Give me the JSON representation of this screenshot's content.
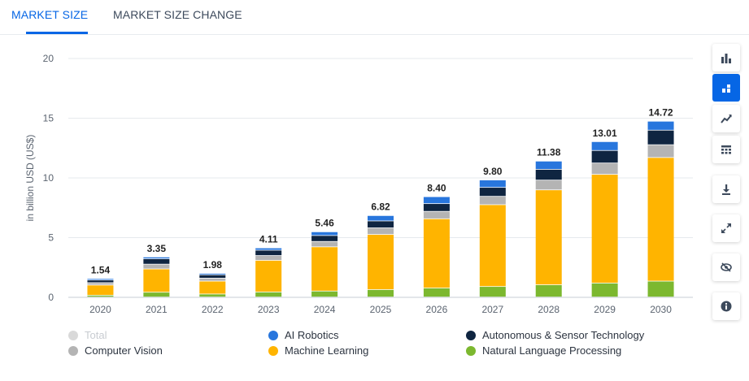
{
  "tabs": [
    {
      "label": "MARKET SIZE",
      "active": true
    },
    {
      "label": "MARKET SIZE CHANGE",
      "active": false
    }
  ],
  "chart_data": {
    "type": "stacked-bar",
    "ylabel": "in billion USD (US$)",
    "ylim": [
      0,
      20
    ],
    "yticks": [
      0,
      5,
      10,
      15,
      20
    ],
    "grid": true,
    "legend_position": "bottom",
    "categories": [
      "2020",
      "2021",
      "2022",
      "2023",
      "2024",
      "2025",
      "2026",
      "2027",
      "2028",
      "2029",
      "2030"
    ],
    "totals": [
      "1.54",
      "3.35",
      "1.98",
      "4.11",
      "5.46",
      "6.82",
      "8.40",
      "9.80",
      "11.38",
      "13.01",
      "14.72"
    ],
    "series": [
      {
        "name": "Natural Language Processing",
        "color": "#7cb82f",
        "values": [
          0.15,
          0.4,
          0.25,
          0.42,
          0.5,
          0.62,
          0.75,
          0.88,
          1.02,
          1.17,
          1.33
        ]
      },
      {
        "name": "Machine Learning",
        "color": "#ffb400",
        "values": [
          0.85,
          1.95,
          1.08,
          2.65,
          3.7,
          4.62,
          5.8,
          6.85,
          7.95,
          9.1,
          10.35
        ]
      },
      {
        "name": "Computer Vision",
        "color": "#b4b4b4",
        "values": [
          0.2,
          0.4,
          0.25,
          0.4,
          0.45,
          0.55,
          0.62,
          0.7,
          0.82,
          0.95,
          1.07
        ]
      },
      {
        "name": "Autonomous & Sensor Technology",
        "color": "#0f2541",
        "values": [
          0.22,
          0.45,
          0.28,
          0.45,
          0.5,
          0.58,
          0.65,
          0.75,
          0.9,
          1.05,
          1.22
        ]
      },
      {
        "name": "AI Robotics",
        "color": "#2876dd",
        "values": [
          0.12,
          0.15,
          0.12,
          0.19,
          0.31,
          0.45,
          0.58,
          0.62,
          0.69,
          0.74,
          0.75
        ]
      }
    ]
  },
  "legend": [
    {
      "label": "Total",
      "color": "#d9d9d9",
      "disabled": true
    },
    {
      "label": "AI Robotics",
      "color": "#2876dd",
      "disabled": false
    },
    {
      "label": "Autonomous & Sensor Technology",
      "color": "#0f2541",
      "disabled": false
    },
    {
      "label": "Computer Vision",
      "color": "#b4b4b4",
      "disabled": false
    },
    {
      "label": "Machine Learning",
      "color": "#ffb400",
      "disabled": false
    },
    {
      "label": "Natural Language Processing",
      "color": "#7cb82f",
      "disabled": false
    }
  ],
  "toolbar": [
    {
      "icon": "bar-chart-icon",
      "active": false
    },
    {
      "icon": "stacked-bar-chart-icon",
      "active": true
    },
    {
      "icon": "trend-line-icon",
      "active": false
    },
    {
      "icon": "table-grid-icon",
      "active": false
    },
    {
      "icon": "download-icon",
      "active": false
    },
    {
      "icon": "fullscreen-icon",
      "active": false
    },
    {
      "icon": "hide-eye-icon",
      "active": false
    },
    {
      "icon": "info-icon",
      "active": false
    }
  ]
}
